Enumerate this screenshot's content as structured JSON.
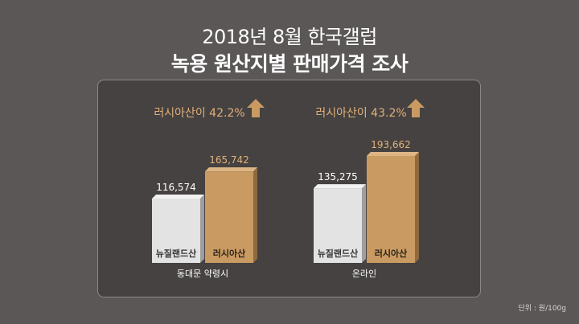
{
  "title": {
    "line1": "2018년 8월 한국갤럽",
    "line2": "녹용 원산지별 판매가격 조사"
  },
  "unit_note": "단위 : 원/100g",
  "colors": {
    "background": "#5a5756",
    "panel": "#454241",
    "nz_bar": "#e3e3e3",
    "ru_bar": "#c99b62",
    "accent_text": "#e3b07a",
    "arrow": "#c99b62"
  },
  "chart_data": {
    "type": "bar",
    "categories": [
      "동대문 약령시",
      "온라인"
    ],
    "series": [
      {
        "name": "뉴질랜드산",
        "values": [
          116574,
          135275
        ],
        "labels": [
          "116,574",
          "135,275"
        ]
      },
      {
        "name": "러시아산",
        "values": [
          165742,
          193662
        ],
        "labels": [
          "165,742",
          "193,662"
        ]
      }
    ],
    "annotations": [
      "러시아산이 42.2%",
      "러시아산이 43.2%"
    ],
    "ylim": [
      0,
      210000
    ]
  }
}
